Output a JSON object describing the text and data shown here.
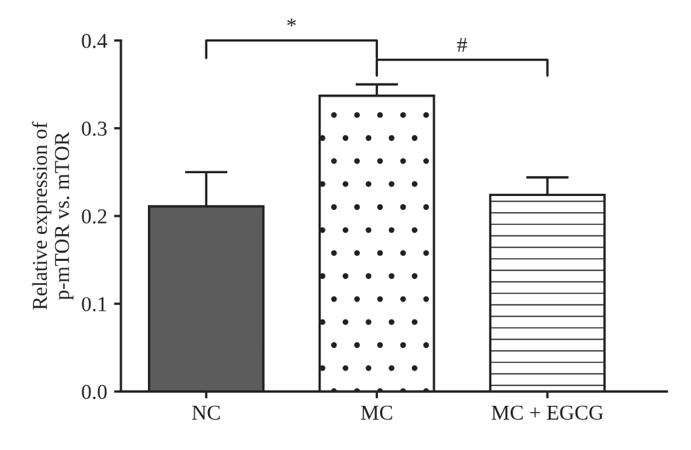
{
  "chart_data": {
    "type": "bar",
    "ylabel": "Relative expression of\np-mTOR vs. mTOR",
    "categories": [
      "NC",
      "MC",
      "MC + EGCG"
    ],
    "values": [
      0.211,
      0.337,
      0.224
    ],
    "errors": [
      0.039,
      0.013,
      0.02
    ],
    "colors": [
      "#5c5c5c",
      "#ffffff",
      "#ffffff"
    ],
    "ylim": [
      0,
      0.4
    ],
    "yticks": [
      {
        "value": 0,
        "label": "0.0"
      },
      0.1,
      0.2,
      0.3,
      0.4
    ],
    "annotations": [
      "*",
      "#"
    ],
    "grid": false
  }
}
